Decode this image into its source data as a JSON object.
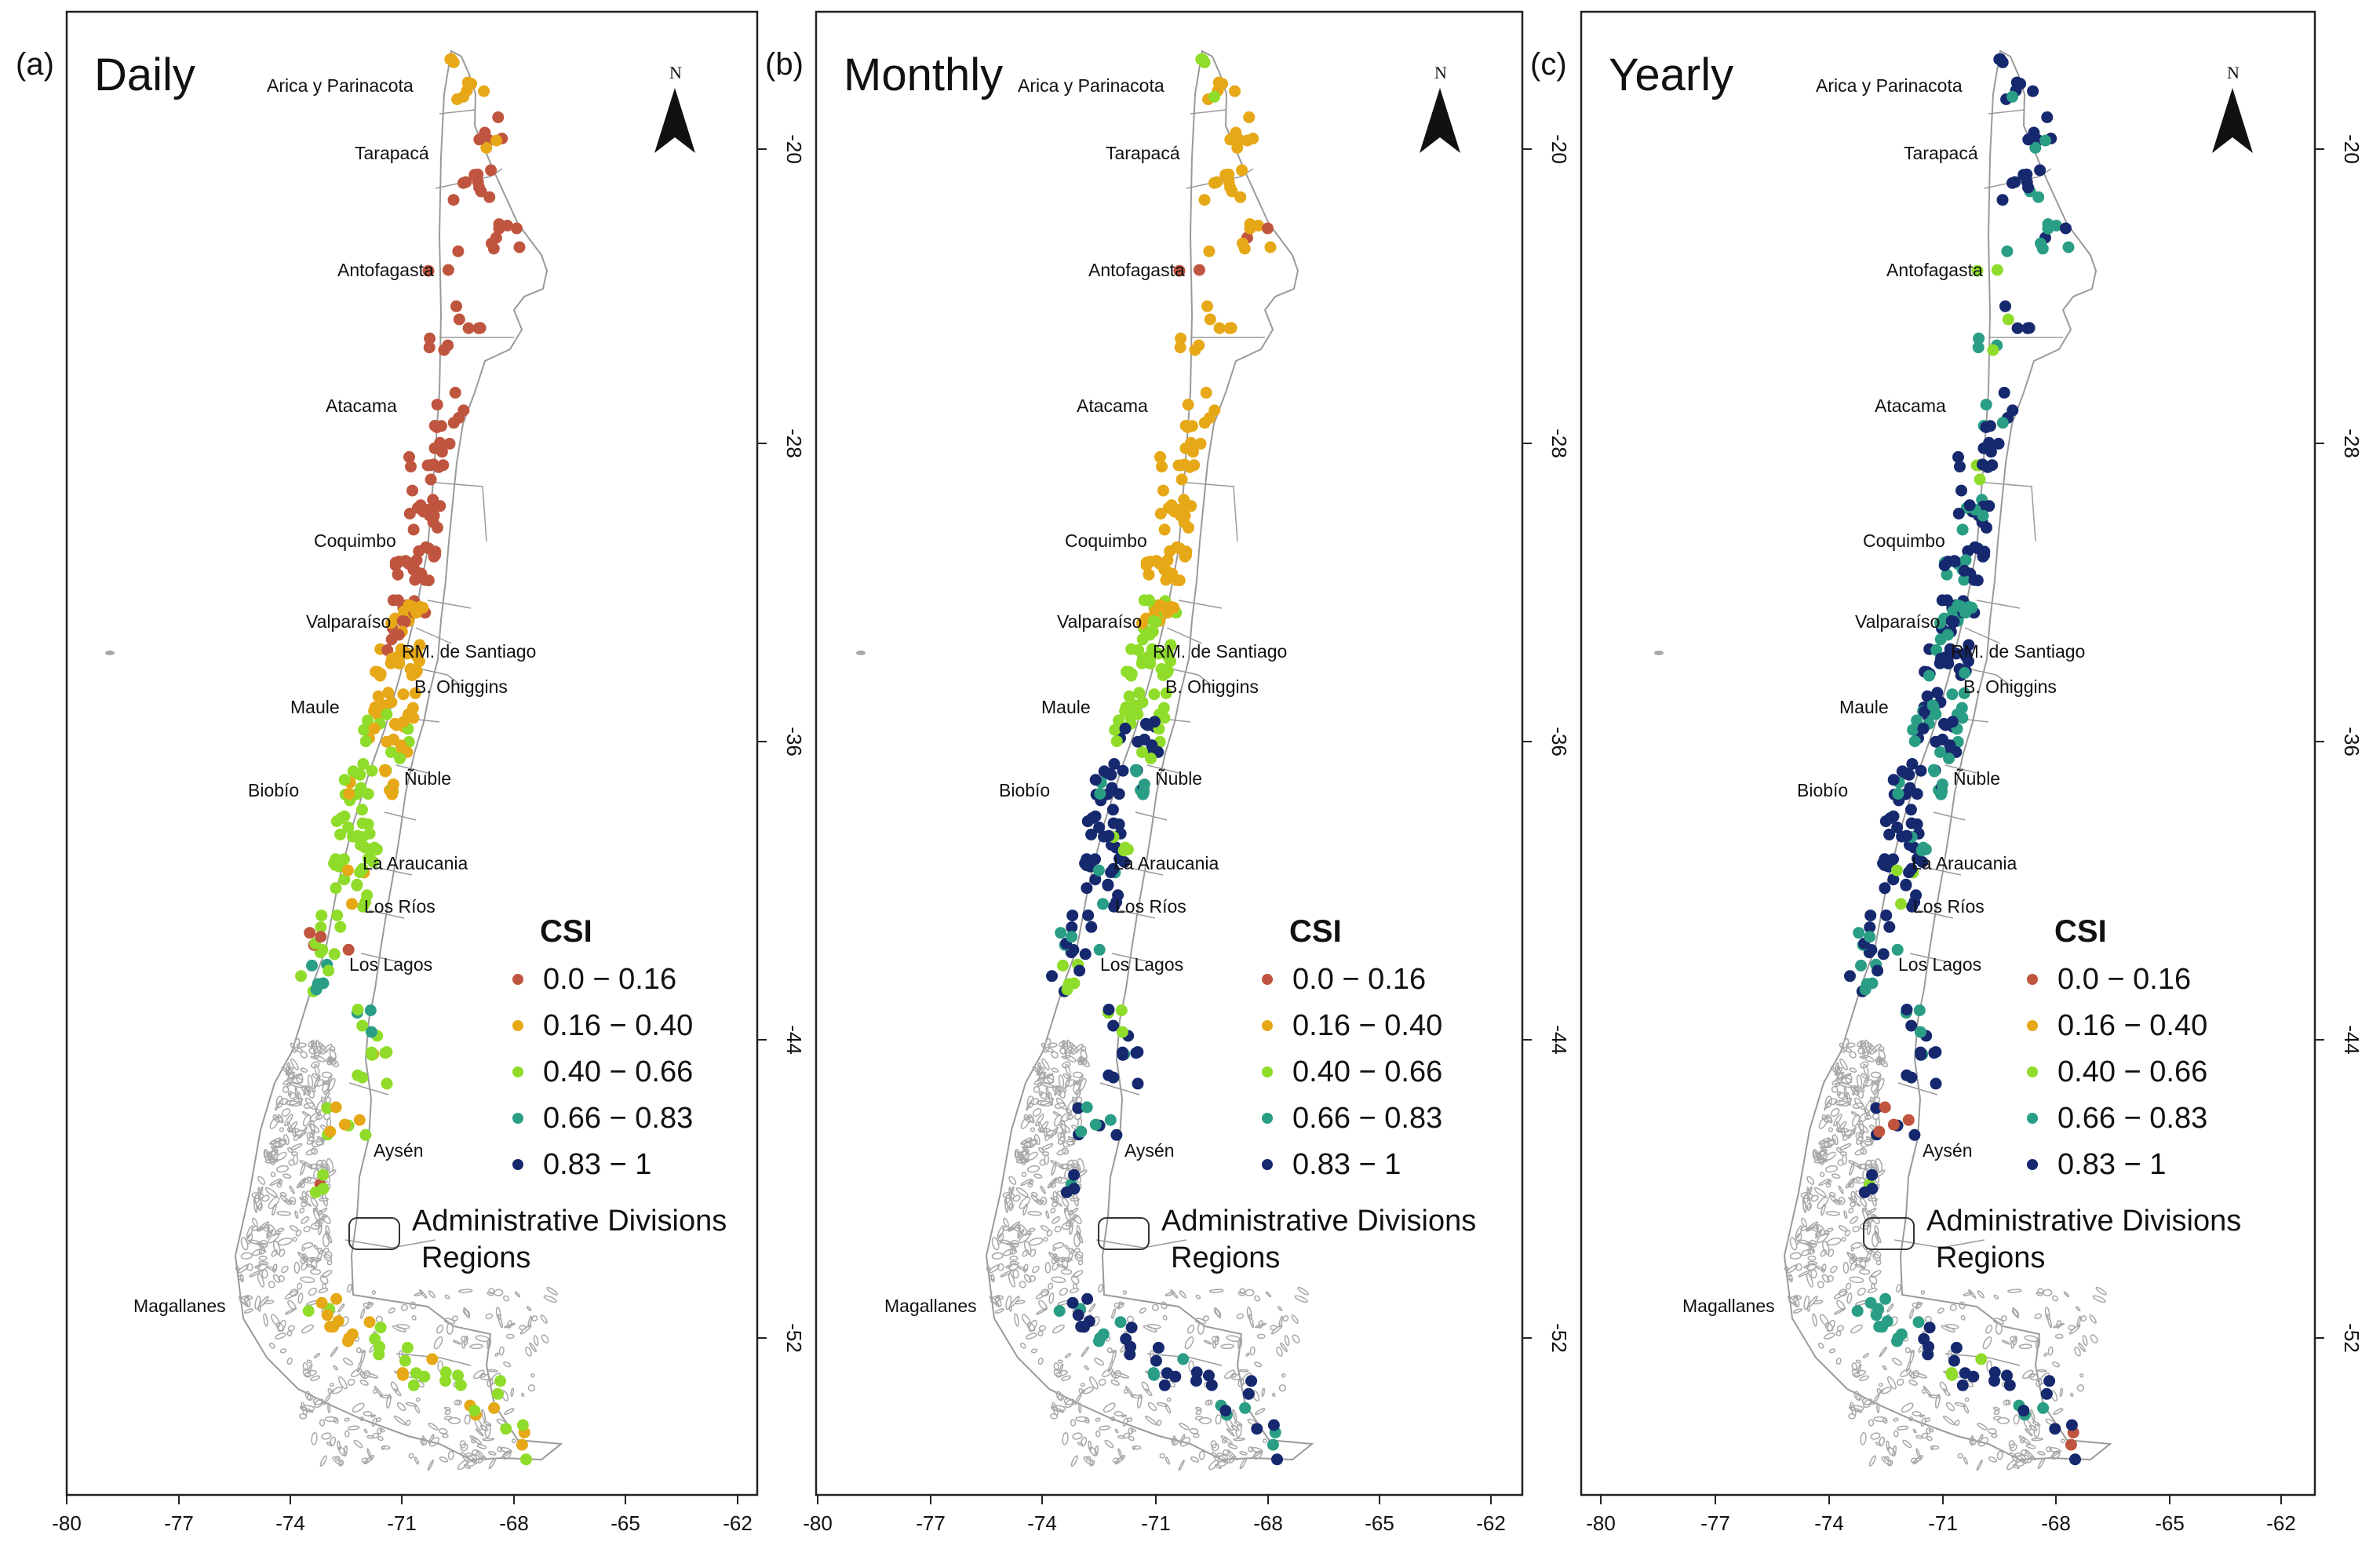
{
  "figure": {
    "panels": [
      {
        "letter": "(a)",
        "title": "Daily"
      },
      {
        "letter": "(b)",
        "title": "Monthly"
      },
      {
        "letter": "(c)",
        "title": "Yearly"
      }
    ],
    "x_ticks": [
      "-80",
      "-77",
      "-74",
      "-71",
      "-68",
      "-65",
      "-62"
    ],
    "y_ticks": [
      "-20",
      "-28",
      "-36",
      "-44",
      "-52"
    ],
    "north_label": "N",
    "regions": [
      "Arica y Parinacota",
      "Tarapacá",
      "Antofagasta",
      "Atacama",
      "Coquimbo",
      "Valparaíso",
      "RM. de Santiago",
      "B. Ohiggins",
      "Maule",
      "Ñuble",
      "Biobío",
      "La Araucania",
      "Los Ríos",
      "Los Lagos",
      "Aysén",
      "Magallanes"
    ],
    "legend": {
      "title": "CSI",
      "classes": [
        {
          "label": "0.0 − 0.16",
          "color": "#c0553f"
        },
        {
          "label": "0.16 − 0.40",
          "color": "#e6a817"
        },
        {
          "label": "0.40 − 0.66",
          "color": "#8fdc2a"
        },
        {
          "label": "0.66 − 0.83",
          "color": "#2a9d85"
        },
        {
          "label": "0.83 − 1",
          "color": "#16296e"
        }
      ],
      "admin_label_1": "Administrative Divisions",
      "admin_label_2": "Regions"
    },
    "colors": {
      "boundary": "#9a9a9a",
      "islands": "#a8a8a8",
      "frame": "#222222"
    }
  }
}
